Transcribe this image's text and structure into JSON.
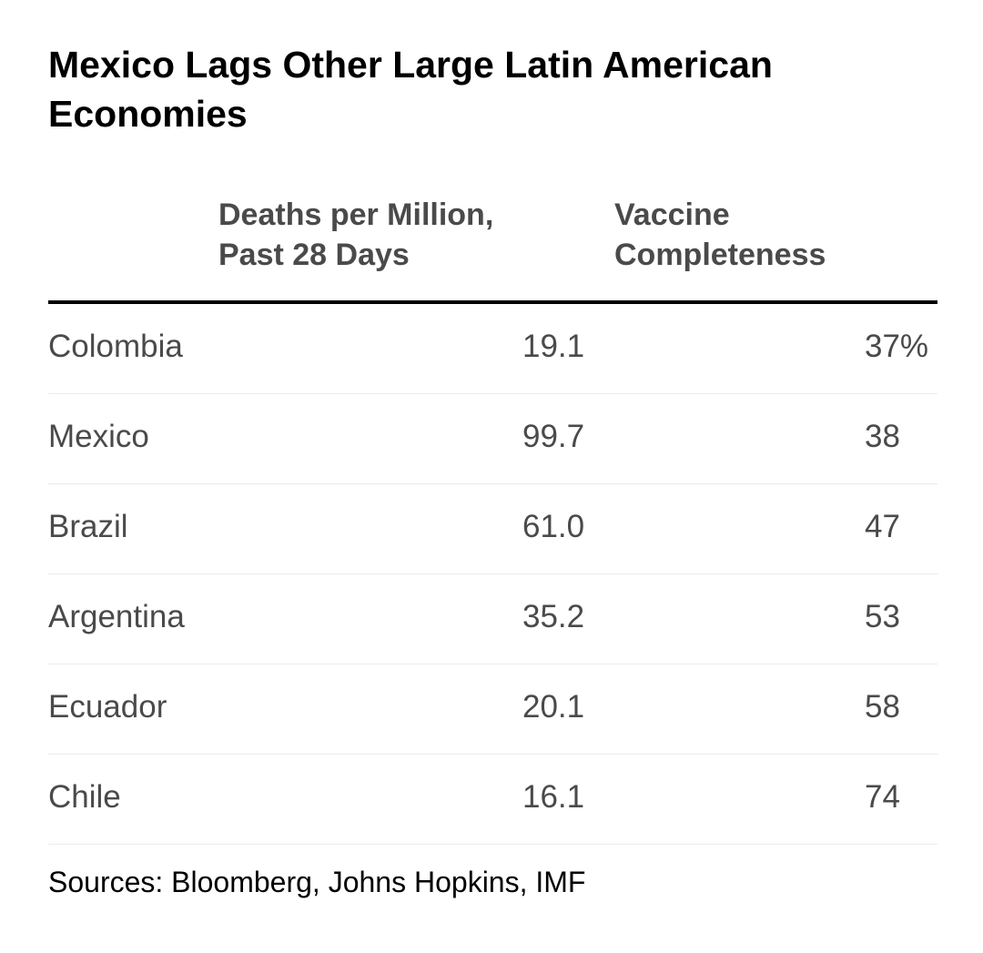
{
  "chart_data": {
    "type": "table",
    "title": "Mexico Lags Other Large Latin American Economies",
    "columns": [
      {
        "key": "deaths",
        "label": "Deaths per Million, Past 28 Days"
      },
      {
        "key": "vaccine",
        "label": "Vaccine Completeness"
      }
    ],
    "rows": [
      {
        "country": "Colombia",
        "deaths": "19.1",
        "vaccine": "37%"
      },
      {
        "country": "Mexico",
        "deaths": "99.7",
        "vaccine": "38"
      },
      {
        "country": "Brazil",
        "deaths": "61.0",
        "vaccine": "47"
      },
      {
        "country": "Argentina",
        "deaths": "35.2",
        "vaccine": "53"
      },
      {
        "country": "Ecuador",
        "deaths": "20.1",
        "vaccine": "58"
      },
      {
        "country": "Chile",
        "deaths": "16.1",
        "vaccine": "74"
      }
    ],
    "source": "Sources: Bloomberg, Johns Hopkins, IMF"
  }
}
